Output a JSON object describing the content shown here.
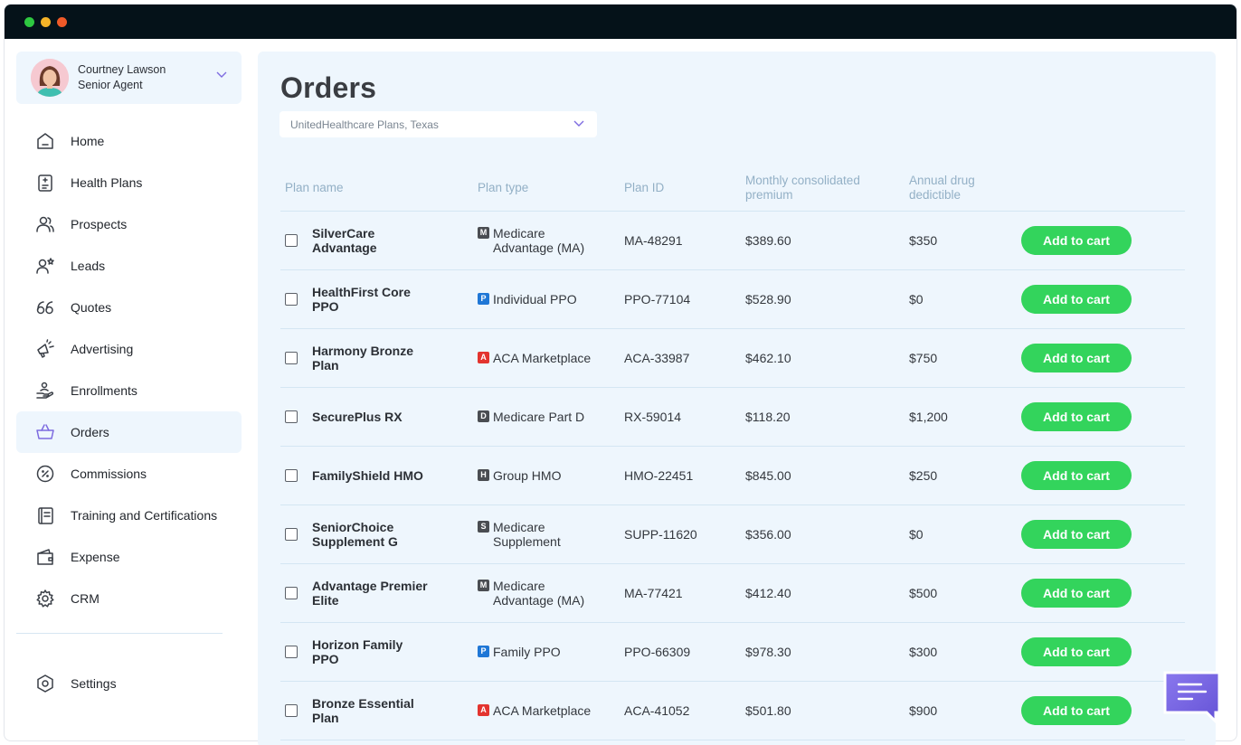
{
  "window": {
    "dots": [
      "#2ec840",
      "#f5b428",
      "#f05a28"
    ]
  },
  "profile": {
    "name": "Courtney Lawson",
    "role": "Senior Agent"
  },
  "nav": [
    {
      "label": "Home",
      "icon": "home-icon"
    },
    {
      "label": "Health Plans",
      "icon": "health-plans-icon"
    },
    {
      "label": "Prospects",
      "icon": "prospects-icon"
    },
    {
      "label": "Leads",
      "icon": "leads-icon"
    },
    {
      "label": "Quotes",
      "icon": "quotes-icon"
    },
    {
      "label": "Advertising",
      "icon": "megaphone-icon"
    },
    {
      "label": "Enrollments",
      "icon": "enrollments-icon"
    },
    {
      "label": "Orders",
      "icon": "basket-icon",
      "active": true
    },
    {
      "label": "Commissions",
      "icon": "commissions-icon"
    },
    {
      "label": "Training and Certifications",
      "icon": "book-icon"
    },
    {
      "label": "Expense",
      "icon": "wallet-icon"
    },
    {
      "label": "CRM",
      "icon": "crm-icon"
    }
  ],
  "settings": {
    "label": "Settings",
    "icon": "settings-icon"
  },
  "main": {
    "title": "Orders",
    "filter": "UnitedHealthcare Plans, Texas"
  },
  "table": {
    "headers": [
      "Plan name",
      "Plan type",
      "Plan ID",
      "Monthly consolidated premium",
      "Annual drug dedictible"
    ],
    "button_label": "Add to cart",
    "rows": [
      {
        "name": "SilverCare Advantage",
        "badge": "M",
        "badge_color": "#4a4d52",
        "type": "Medicare Advantage (MA)",
        "id": "MA-48291",
        "premium": "$389.60",
        "deductible": "$350"
      },
      {
        "name": "HealthFirst Core PPO",
        "badge": "P",
        "badge_color": "#1f77d6",
        "type": "Individual PPO",
        "id": "PPO-77104",
        "premium": "$528.90",
        "deductible": "$0"
      },
      {
        "name": "Harmony Bronze Plan",
        "badge": "A",
        "badge_color": "#e3342f",
        "type": "ACA Marketplace",
        "id": "ACA-33987",
        "premium": "$462.10",
        "deductible": "$750"
      },
      {
        "name": "SecurePlus RX",
        "badge": "D",
        "badge_color": "#4a4d52",
        "type": "Medicare Part D",
        "id": "RX-59014",
        "premium": "$118.20",
        "deductible": "$1,200"
      },
      {
        "name": "FamilyShield HMO",
        "badge": "H",
        "badge_color": "#4a4d52",
        "type": "Group HMO",
        "id": "HMO-22451",
        "premium": "$845.00",
        "deductible": "$250"
      },
      {
        "name": "SeniorChoice Supplement G",
        "badge": "S",
        "badge_color": "#4a4d52",
        "type": "Medicare Supplement",
        "id": "SUPP-11620",
        "premium": "$356.00",
        "deductible": "$0"
      },
      {
        "name": "Advantage Premier Elite",
        "badge": "M",
        "badge_color": "#4a4d52",
        "type": "Medicare Advantage (MA)",
        "id": "MA-77421",
        "premium": "$412.40",
        "deductible": "$500"
      },
      {
        "name": "Horizon Family PPO",
        "badge": "P",
        "badge_color": "#1f77d6",
        "type": "Family PPO",
        "id": "PPO-66309",
        "premium": "$978.30",
        "deductible": "$300"
      },
      {
        "name": "Bronze Essential Plan",
        "badge": "A",
        "badge_color": "#e3342f",
        "type": "ACA Marketplace",
        "id": "ACA-41052",
        "premium": "$501.80",
        "deductible": "$900"
      }
    ]
  },
  "chat": {
    "icon": "chat-icon"
  }
}
